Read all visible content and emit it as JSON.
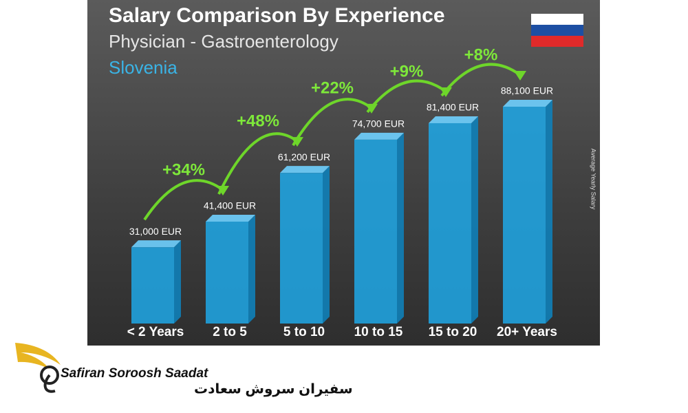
{
  "chart_data": {
    "type": "bar",
    "title": "Salary Comparison By Experience",
    "subtitle": "Physician - Gastroenterology",
    "region": "Slovenia",
    "y_label": "Average Yearly Salary",
    "categories": [
      "< 2 Years",
      "2 to 5",
      "5 to 10",
      "10 to 15",
      "15 to 20",
      "20+ Years"
    ],
    "values": [
      31000,
      41400,
      61200,
      74700,
      81400,
      88100
    ],
    "value_labels": [
      "31,000 EUR",
      "41,400 EUR",
      "61,200 EUR",
      "74,700 EUR",
      "81,400 EUR",
      "88,100 EUR"
    ],
    "growth_labels": [
      "+34%",
      "+48%",
      "+22%",
      "+9%",
      "+8%"
    ],
    "color": "#1fa8e8"
  },
  "watermark": {
    "name_en": "Safiran Soroosh Saadat",
    "name_fa": "سفیران سروش سعادت"
  }
}
